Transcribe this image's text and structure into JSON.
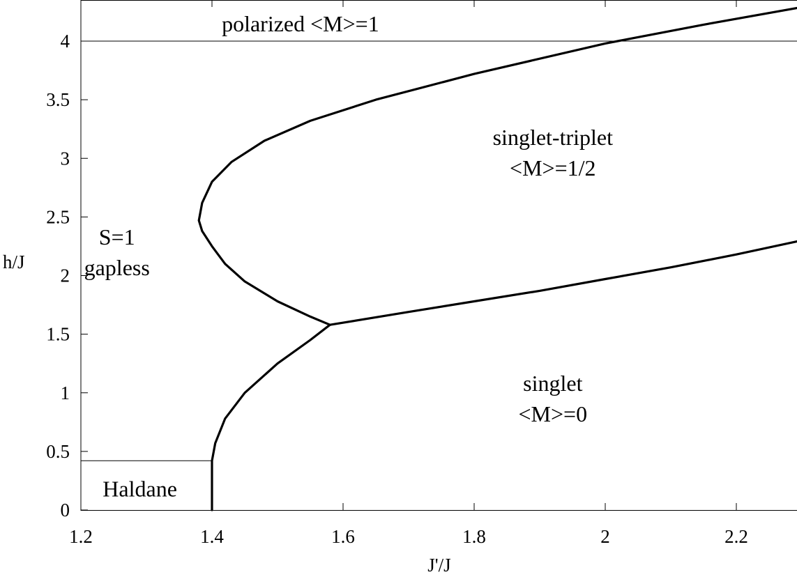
{
  "chart_data": {
    "type": "line",
    "title": "",
    "xlabel": "J'/J",
    "ylabel": "h/J",
    "xlim": [
      1.2,
      2.3
    ],
    "ylim": [
      0,
      4.3
    ],
    "x_ticks": [
      1.2,
      1.4,
      1.6,
      1.8,
      2,
      2.2
    ],
    "x_tick_labels": [
      "1.2",
      "1.4",
      "1.6",
      "1.8",
      "2",
      "2.2"
    ],
    "y_ticks": [
      0,
      0.5,
      1,
      1.5,
      2,
      2.5,
      3,
      3.5,
      4
    ],
    "y_tick_labels": [
      "0",
      "0.5",
      "1",
      "1.5",
      "2",
      "2.5",
      "3",
      "3.5",
      "4"
    ],
    "grid": false,
    "series": [
      {
        "style": "thin",
        "x": [
          1.2,
          2.3
        ],
        "y": [
          4.0,
          4.0
        ]
      },
      {
        "style": "thin",
        "x": [
          1.2,
          1.4
        ],
        "y": [
          0.42,
          0.42
        ]
      },
      {
        "style": "thick",
        "x": [
          1.58,
          1.55,
          1.5,
          1.45,
          1.42,
          1.4,
          1.385,
          1.38,
          1.385,
          1.4,
          1.43,
          1.48,
          1.55,
          1.65,
          1.8,
          2.0,
          2.15,
          2.3
        ],
        "y": [
          1.58,
          1.65,
          1.78,
          1.95,
          2.1,
          2.25,
          2.38,
          2.47,
          2.62,
          2.8,
          2.97,
          3.15,
          3.32,
          3.5,
          3.72,
          3.98,
          4.14,
          4.29
        ]
      },
      {
        "style": "thick",
        "x": [
          1.58,
          1.7,
          1.8,
          1.9,
          2.0,
          2.1,
          2.2,
          2.3
        ],
        "y": [
          1.58,
          1.69,
          1.78,
          1.87,
          1.97,
          2.07,
          2.18,
          2.3
        ]
      },
      {
        "style": "thick",
        "x": [
          1.4,
          1.4,
          1.405,
          1.42,
          1.45,
          1.5,
          1.55,
          1.58
        ],
        "y": [
          0,
          0.42,
          0.57,
          0.78,
          1.0,
          1.25,
          1.45,
          1.58
        ]
      }
    ],
    "annotations": [
      {
        "lines": [
          "polarized   <M>=1"
        ],
        "x": 1.535,
        "y": 4.15
      },
      {
        "lines": [
          "singlet-triplet",
          "<M>=1/2"
        ],
        "x": 1.92,
        "y": 3.05
      },
      {
        "lines": [
          "S=1",
          "gapless"
        ],
        "x": 1.255,
        "y": 2.2
      },
      {
        "lines": [
          "singlet",
          "<M>=0"
        ],
        "x": 1.92,
        "y": 0.95
      },
      {
        "lines": [
          "Haldane"
        ],
        "x": 1.29,
        "y": 0.18
      }
    ]
  }
}
